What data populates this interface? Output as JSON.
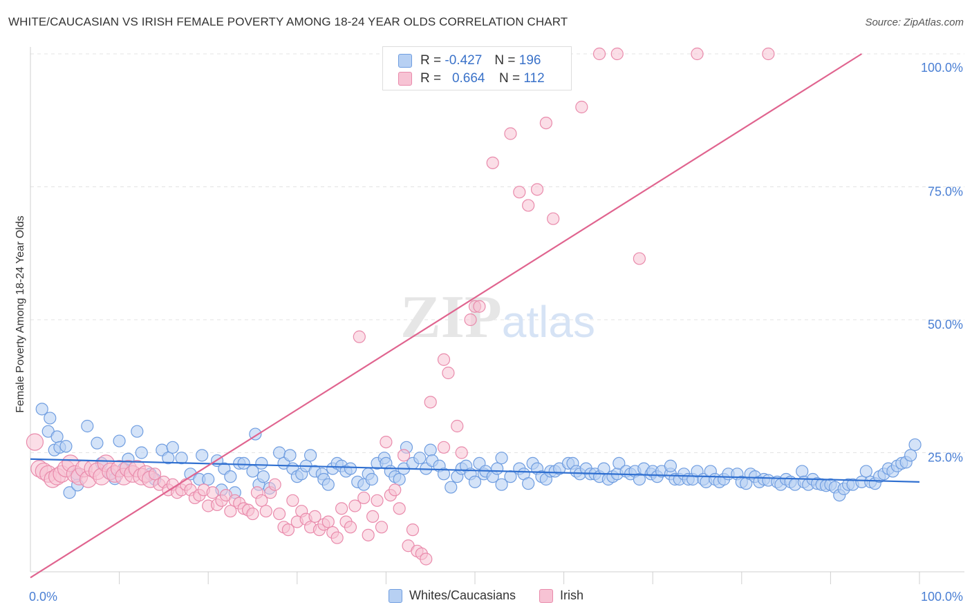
{
  "title": "WHITE/CAUCASIAN VS IRISH FEMALE POVERTY AMONG 18-24 YEAR OLDS CORRELATION CHART",
  "source": "Source: ZipAtlas.com",
  "watermark": "ZIPatlas",
  "legend": {
    "r_label": "R =",
    "n_label": "N =",
    "blue": {
      "r": "-0.427",
      "n": "196"
    },
    "pink": {
      "r": "0.664",
      "n": "112"
    }
  },
  "bottom_legend": {
    "blue": "Whites/Caucasians",
    "pink": "Irish"
  },
  "colors": {
    "blue_fill": "#b7d0f3",
    "blue_stroke": "#6f9de0",
    "blue_line": "#2f6fd0",
    "pink_fill": "#f7c3d4",
    "pink_stroke": "#e98aab",
    "pink_line": "#e0648f",
    "tick_label": "#4a7fd4"
  },
  "chart_data": {
    "type": "scatter",
    "title": "WHITE/CAUCASIAN VS IRISH FEMALE POVERTY AMONG 18-24 YEAR OLDS CORRELATION CHART",
    "xlabel": "",
    "ylabel": "Female Poverty Among 18-24 Year Olds",
    "xlim": [
      0,
      100
    ],
    "ylim": [
      0,
      100
    ],
    "x_tick_labels": [
      "0.0%",
      "100.0%"
    ],
    "y_tick_labels": [
      "25.0%",
      "50.0%",
      "75.0%",
      "100.0%"
    ],
    "y_ticks": [
      25,
      50,
      75,
      100
    ],
    "grid": true,
    "legend_position": "top-center",
    "series": [
      {
        "name": "Whites/Caucasians",
        "r": -0.427,
        "n": 196,
        "trend": {
          "x": [
            0,
            100
          ],
          "y": [
            23.8,
            19.5
          ]
        },
        "points": [
          [
            1.3,
            33.2
          ],
          [
            2,
            29
          ],
          [
            2.2,
            31.5
          ],
          [
            2.7,
            25.5
          ],
          [
            3,
            28
          ],
          [
            3.3,
            26
          ],
          [
            4,
            26.2
          ],
          [
            4.4,
            17.5
          ],
          [
            5.2,
            21
          ],
          [
            5.3,
            18.9
          ],
          [
            6.4,
            30
          ],
          [
            7.5,
            26.8
          ],
          [
            8,
            23
          ],
          [
            9,
            21
          ],
          [
            9.5,
            20.1
          ],
          [
            10,
            27.2
          ],
          [
            10.5,
            22
          ],
          [
            11,
            23.8
          ],
          [
            12,
            29
          ],
          [
            12.5,
            25
          ],
          [
            13.5,
            21
          ],
          [
            14,
            20
          ],
          [
            14.8,
            25.5
          ],
          [
            15.5,
            24
          ],
          [
            16,
            26
          ],
          [
            17,
            24
          ],
          [
            18,
            21
          ],
          [
            19,
            20
          ],
          [
            19.3,
            24.5
          ],
          [
            20,
            20
          ],
          [
            21,
            23.5
          ],
          [
            21.5,
            18
          ],
          [
            21.8,
            22
          ],
          [
            22.5,
            20.5
          ],
          [
            23,
            17.5
          ],
          [
            23.5,
            23
          ],
          [
            24,
            23
          ],
          [
            25,
            21.5
          ],
          [
            25.3,
            28.5
          ],
          [
            25.7,
            19
          ],
          [
            26,
            23
          ],
          [
            26.2,
            20.5
          ],
          [
            26.9,
            18.3
          ],
          [
            28,
            25
          ],
          [
            28.5,
            23
          ],
          [
            29.2,
            24.5
          ],
          [
            29.5,
            22
          ],
          [
            30,
            20.5
          ],
          [
            30.5,
            21
          ],
          [
            31,
            22.5
          ],
          [
            31.5,
            24.5
          ],
          [
            32,
            21.5
          ],
          [
            32.8,
            21
          ],
          [
            33,
            20
          ],
          [
            33.5,
            19
          ],
          [
            34,
            22
          ],
          [
            34.5,
            23
          ],
          [
            35,
            22.5
          ],
          [
            35.5,
            21.5
          ],
          [
            36,
            22
          ],
          [
            36.8,
            19.5
          ],
          [
            37.5,
            19
          ],
          [
            38,
            21
          ],
          [
            38.4,
            20
          ],
          [
            39,
            23
          ],
          [
            39.8,
            24
          ],
          [
            40,
            23
          ],
          [
            40.5,
            21.5
          ],
          [
            41,
            20.5
          ],
          [
            41.5,
            20
          ],
          [
            42,
            22
          ],
          [
            42.3,
            26
          ],
          [
            43,
            23
          ],
          [
            43.8,
            24
          ],
          [
            44.5,
            22
          ],
          [
            45,
            25.5
          ],
          [
            45.2,
            23.5
          ],
          [
            46,
            22.5
          ],
          [
            46.5,
            21
          ],
          [
            47.3,
            18.5
          ],
          [
            48,
            20.5
          ],
          [
            48.5,
            22
          ],
          [
            49,
            22.5
          ],
          [
            49.5,
            21
          ],
          [
            50,
            19.5
          ],
          [
            50.5,
            23
          ],
          [
            51,
            21
          ],
          [
            51.2,
            21.5
          ],
          [
            52,
            20.5
          ],
          [
            52.5,
            22
          ],
          [
            53,
            24
          ],
          [
            53,
            19
          ],
          [
            54,
            20.5
          ],
          [
            55,
            22
          ],
          [
            55.5,
            21
          ],
          [
            56,
            19.2
          ],
          [
            56.5,
            23
          ],
          [
            57,
            22
          ],
          [
            57.5,
            20.5
          ],
          [
            58,
            20
          ],
          [
            58.5,
            21.5
          ],
          [
            59,
            21.5
          ],
          [
            59.5,
            22
          ],
          [
            60.5,
            23
          ],
          [
            61,
            23
          ],
          [
            61.4,
            21.5
          ],
          [
            61.8,
            21
          ],
          [
            62.5,
            22
          ],
          [
            63,
            21
          ],
          [
            63.5,
            21
          ],
          [
            64,
            20.5
          ],
          [
            64.5,
            22
          ],
          [
            65,
            20
          ],
          [
            65.5,
            20.5
          ],
          [
            66,
            21
          ],
          [
            66.2,
            23
          ],
          [
            67,
            21.5
          ],
          [
            67.5,
            21
          ],
          [
            68,
            21.5
          ],
          [
            68.5,
            20
          ],
          [
            69,
            22
          ],
          [
            69.8,
            21
          ],
          [
            70,
            21.5
          ],
          [
            70.5,
            20.5
          ],
          [
            71,
            21.5
          ],
          [
            72,
            21
          ],
          [
            72,
            22.5
          ],
          [
            72.5,
            20
          ],
          [
            73,
            20
          ],
          [
            73.5,
            21
          ],
          [
            74,
            20
          ],
          [
            74.5,
            20
          ],
          [
            75,
            21.5
          ],
          [
            75.7,
            20
          ],
          [
            76,
            19.5
          ],
          [
            76.5,
            21.5
          ],
          [
            77,
            20
          ],
          [
            77.5,
            19.5
          ],
          [
            78,
            20
          ],
          [
            78.5,
            21
          ],
          [
            79.5,
            21
          ],
          [
            80,
            19.5
          ],
          [
            80.5,
            19.2
          ],
          [
            81,
            21
          ],
          [
            81.5,
            20.5
          ],
          [
            82,
            19.5
          ],
          [
            82.5,
            20
          ],
          [
            83,
            19.8
          ],
          [
            84,
            19.5
          ],
          [
            84.4,
            19
          ],
          [
            85,
            20
          ],
          [
            85.5,
            19.5
          ],
          [
            86,
            19
          ],
          [
            86.8,
            21.5
          ],
          [
            87,
            19.5
          ],
          [
            87.5,
            19
          ],
          [
            88,
            20
          ],
          [
            88.5,
            19.2
          ],
          [
            89,
            19
          ],
          [
            89.5,
            18.8
          ],
          [
            90,
            19
          ],
          [
            90.5,
            18.5
          ],
          [
            91,
            17
          ],
          [
            91.5,
            18.2
          ],
          [
            92,
            19
          ],
          [
            92.5,
            19
          ],
          [
            93.5,
            19.5
          ],
          [
            94,
            21.5
          ],
          [
            94.5,
            19.5
          ],
          [
            95,
            19.2
          ],
          [
            95.5,
            20.5
          ],
          [
            96,
            21
          ],
          [
            96.5,
            22
          ],
          [
            97,
            21.5
          ],
          [
            97.5,
            22.5
          ],
          [
            98,
            23
          ],
          [
            98.5,
            23.2
          ],
          [
            99,
            24.5
          ],
          [
            99.5,
            26.5
          ]
        ]
      },
      {
        "name": "Irish",
        "r": 0.664,
        "n": 112,
        "trend": {
          "x": [
            0,
            93.5
          ],
          "y": [
            1.5,
            100
          ]
        },
        "points": [
          [
            0.5,
            27
          ],
          [
            1,
            22
          ],
          [
            1.5,
            21.5
          ],
          [
            2,
            21
          ],
          [
            2.5,
            20
          ],
          [
            3,
            20.5
          ],
          [
            3.5,
            21
          ],
          [
            4,
            22
          ],
          [
            4.5,
            23
          ],
          [
            5,
            21
          ],
          [
            5.5,
            20.5
          ],
          [
            6,
            22
          ],
          [
            6.5,
            20
          ],
          [
            7,
            22
          ],
          [
            7.5,
            21.5
          ],
          [
            8,
            20.5
          ],
          [
            8.5,
            23
          ],
          [
            9,
            21.5
          ],
          [
            9.5,
            21
          ],
          [
            10,
            22
          ],
          [
            10.5,
            20.5
          ],
          [
            11,
            22
          ],
          [
            11.5,
            21
          ],
          [
            12,
            22
          ],
          [
            12.5,
            20.5
          ],
          [
            13,
            21
          ],
          [
            13.5,
            20
          ],
          [
            14,
            21
          ],
          [
            14.5,
            19
          ],
          [
            15,
            19.5
          ],
          [
            15.5,
            18
          ],
          [
            16,
            19
          ],
          [
            16.5,
            17.5
          ],
          [
            17,
            18
          ],
          [
            17.5,
            19
          ],
          [
            18,
            18
          ],
          [
            18.5,
            16.5
          ],
          [
            19,
            17
          ],
          [
            19.5,
            18
          ],
          [
            20,
            15
          ],
          [
            20.5,
            17.5
          ],
          [
            21,
            15.2
          ],
          [
            21.5,
            16
          ],
          [
            22,
            17
          ],
          [
            22.5,
            14
          ],
          [
            23,
            16
          ],
          [
            23.5,
            15.5
          ],
          [
            24,
            14.5
          ],
          [
            24.5,
            14.2
          ],
          [
            25,
            13.5
          ],
          [
            25.5,
            17.5
          ],
          [
            26,
            16
          ],
          [
            26.5,
            14
          ],
          [
            27,
            17.5
          ],
          [
            27.5,
            19
          ],
          [
            28,
            13.5
          ],
          [
            28.5,
            11
          ],
          [
            29,
            10.5
          ],
          [
            29.5,
            16
          ],
          [
            30,
            12
          ],
          [
            30.5,
            14
          ],
          [
            31,
            12.5
          ],
          [
            31.5,
            11
          ],
          [
            32,
            13
          ],
          [
            32.5,
            10.5
          ],
          [
            33,
            11.5
          ],
          [
            33.5,
            12
          ],
          [
            34,
            10
          ],
          [
            34.5,
            9
          ],
          [
            35,
            14.5
          ],
          [
            35.5,
            12
          ],
          [
            36,
            11
          ],
          [
            36.5,
            15
          ],
          [
            37,
            46.8
          ],
          [
            37.5,
            16.5
          ],
          [
            38,
            9.5
          ],
          [
            38.5,
            13
          ],
          [
            39,
            16
          ],
          [
            39.5,
            11
          ],
          [
            40,
            27
          ],
          [
            40.5,
            17
          ],
          [
            41,
            18
          ],
          [
            41.5,
            14.5
          ],
          [
            42,
            24.5
          ],
          [
            42.5,
            7.5
          ],
          [
            43,
            10.5
          ],
          [
            43.5,
            6.5
          ],
          [
            44,
            6
          ],
          [
            44.5,
            5
          ],
          [
            45,
            34.5
          ],
          [
            46.5,
            26
          ],
          [
            46.5,
            42.5
          ],
          [
            47,
            40
          ],
          [
            48,
            30
          ],
          [
            48.5,
            25
          ],
          [
            49.5,
            50
          ],
          [
            50,
            52.5
          ],
          [
            50.5,
            52.5
          ],
          [
            52,
            79.5
          ],
          [
            52.5,
            100
          ],
          [
            53,
            100
          ],
          [
            53.5,
            100
          ],
          [
            54,
            85
          ],
          [
            55,
            74
          ],
          [
            56,
            71.5
          ],
          [
            57,
            74.5
          ],
          [
            58,
            87
          ],
          [
            58.5,
            100
          ],
          [
            58.8,
            69
          ],
          [
            60,
            100
          ],
          [
            62,
            90
          ],
          [
            64,
            100
          ],
          [
            66,
            100
          ],
          [
            68.5,
            61.5
          ],
          [
            75,
            100
          ],
          [
            83,
            100
          ]
        ]
      }
    ]
  }
}
